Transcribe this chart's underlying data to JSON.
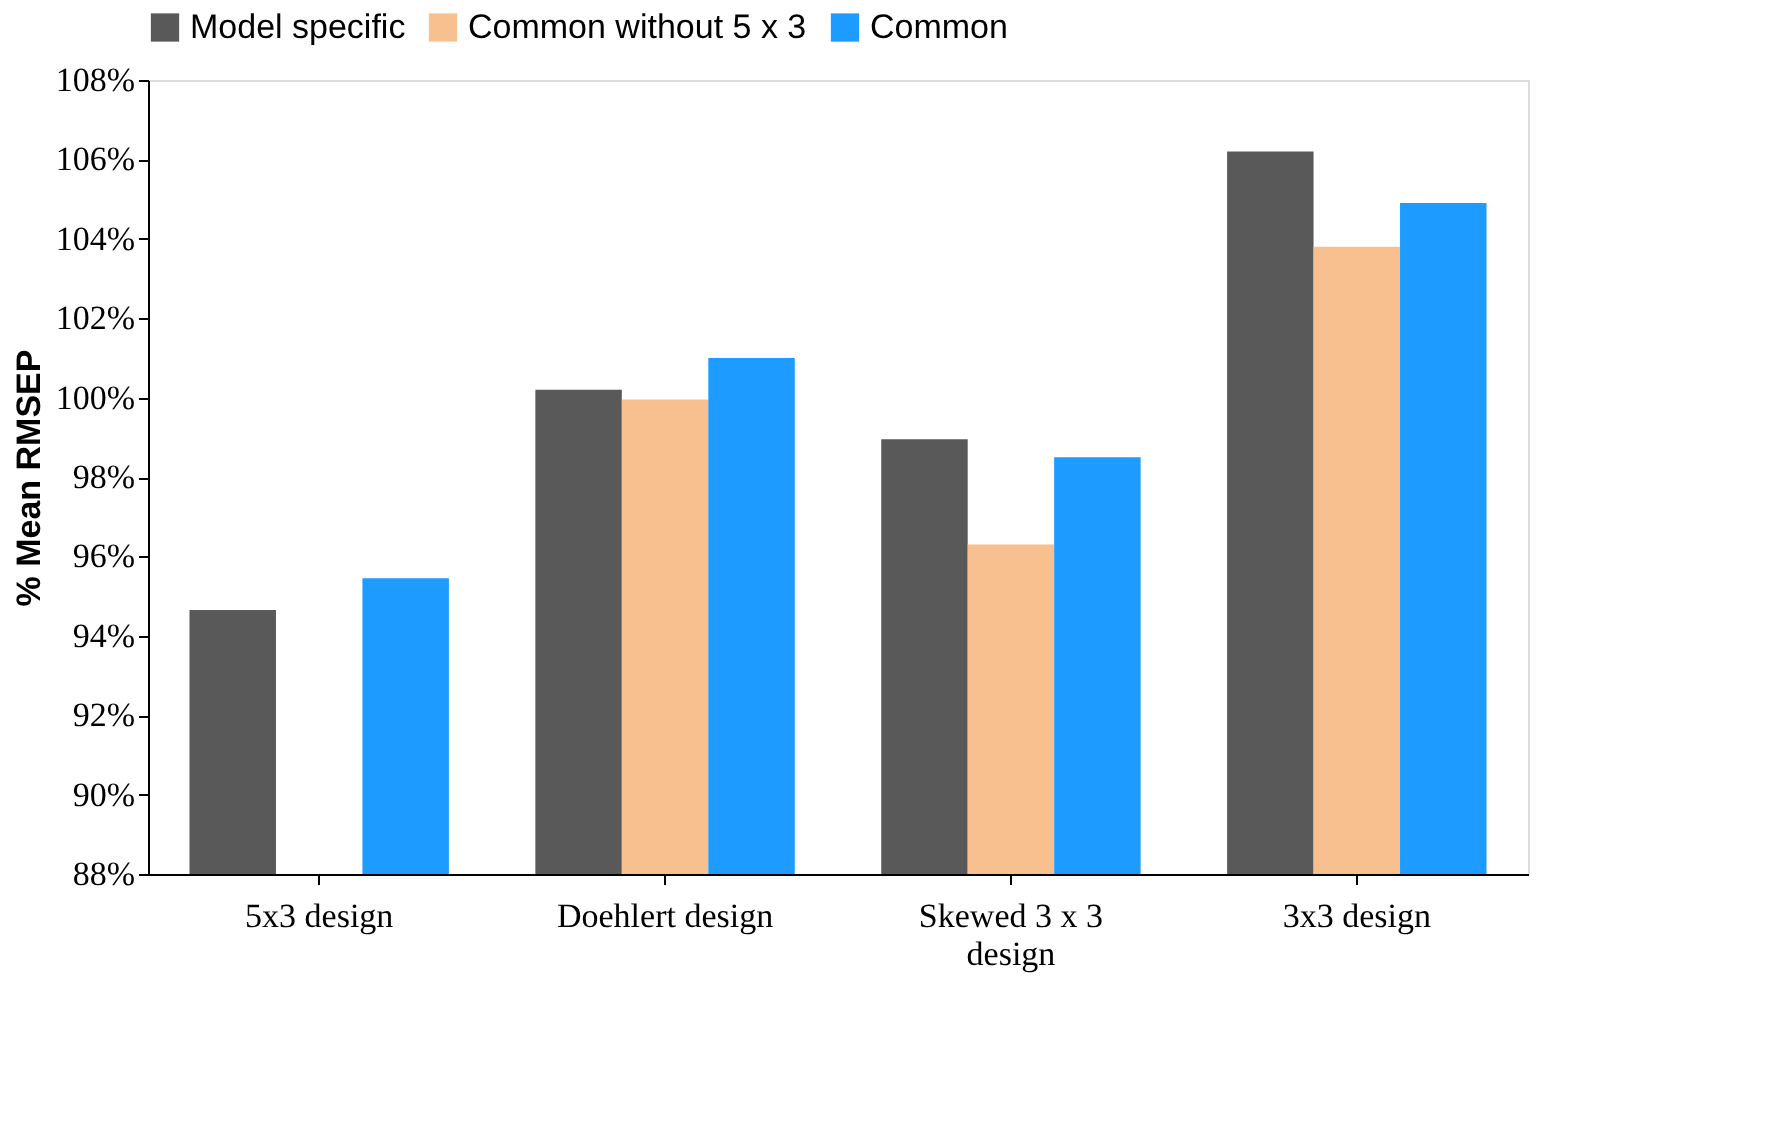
{
  "chart_data": {
    "type": "bar",
    "ylabel": "% Mean RMSEP",
    "categories": [
      "5x3 design",
      "Doehlert design",
      "Skewed 3 x 3 design",
      "3x3 design"
    ],
    "series": [
      {
        "name": "Model specific",
        "color": "#595959",
        "values": [
          94.65,
          100.2,
          98.95,
          106.2
        ]
      },
      {
        "name": "Common without 5 x 3",
        "color": "#f8c08f",
        "values": [
          null,
          99.95,
          96.3,
          103.8
        ]
      },
      {
        "name": "Common",
        "color": "#1e9bff",
        "values": [
          95.45,
          101.0,
          98.5,
          104.9
        ]
      }
    ],
    "ylim": [
      88,
      108
    ],
    "yticks": [
      {
        "value": 88,
        "label": "88%"
      },
      {
        "value": 90,
        "label": "90%"
      },
      {
        "value": 92,
        "label": "92%"
      },
      {
        "value": 94,
        "label": "94%"
      },
      {
        "value": 96,
        "label": "96%"
      },
      {
        "value": 98,
        "label": "98%"
      },
      {
        "value": 100,
        "label": "100%"
      },
      {
        "value": 102,
        "label": "102%"
      },
      {
        "value": 104,
        "label": "104%"
      },
      {
        "value": 106,
        "label": "106%"
      },
      {
        "value": 108,
        "label": "108%"
      }
    ],
    "grid": false,
    "legend": "top"
  }
}
